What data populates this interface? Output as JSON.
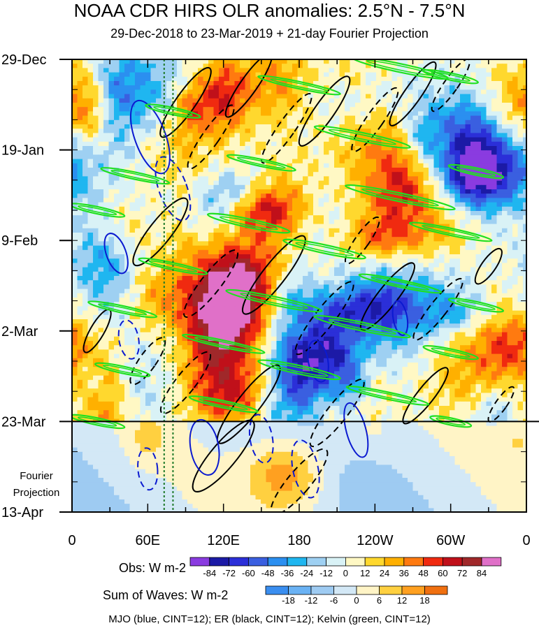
{
  "title": "NOAA CDR HIRS OLR anomalies: 2.5°N - 7.5°N",
  "subtitle": "29-Dec-2018 to 23-Mar-2019 + 21-day Fourier Projection",
  "caption": "MJO (blue, CINT=12); ER (black, CINT=12); Kelvin (green, CINT=12)",
  "chart_data": {
    "type": "heatmap",
    "title": "NOAA CDR HIRS OLR anomalies: 2.5°N - 7.5°N",
    "subtitle": "29-Dec-2018 to 23-Mar-2019 + 21-day Fourier Projection",
    "x_ticks": [
      {
        "lon": 0,
        "label": "0"
      },
      {
        "lon": 60,
        "label": "60E"
      },
      {
        "lon": 120,
        "label": "120E"
      },
      {
        "lon": 180,
        "label": "180"
      },
      {
        "lon": 240,
        "label": "120W"
      },
      {
        "lon": 300,
        "label": "60W"
      },
      {
        "lon": 360,
        "label": "0"
      }
    ],
    "xlim": [
      0,
      360
    ],
    "y_ticks": [
      {
        "day": 0,
        "label": "29-Dec"
      },
      {
        "day": 21,
        "label": "19-Jan"
      },
      {
        "day": 42,
        "label": "9-Feb"
      },
      {
        "day": 63,
        "label": "2-Mar"
      },
      {
        "day": 84,
        "label": "23-Mar"
      },
      {
        "day": 105,
        "label": "13-Apr"
      }
    ],
    "ylim_days": [
      0,
      105
    ],
    "observation_end_day": 84,
    "projection_label_line1": "Fourier",
    "projection_label_line2": "Projection",
    "vertical_reference_lons": [
      73,
      80
    ],
    "obs_colorbar": {
      "label": "Obs: W m-2",
      "levels": [
        -84,
        -72,
        -60,
        -48,
        -36,
        -24,
        -12,
        0,
        12,
        24,
        36,
        48,
        60,
        72,
        84
      ],
      "level_labels": [
        "-84",
        "-72",
        "-60",
        "-48",
        "-36",
        "-24",
        "-12",
        "0",
        "12",
        "24",
        "36",
        "48",
        "60",
        "72",
        "84"
      ],
      "colors": [
        "#8a3be0",
        "#1c1aa6",
        "#2b2fd8",
        "#3a5fe0",
        "#2b8ff0",
        "#1fb6f0",
        "#9ed0f2",
        "#d9f2f6",
        "#fff8c4",
        "#ffd82e",
        "#ffb000",
        "#ff7a10",
        "#f02a10",
        "#c0101a",
        "#a0282a",
        "#e070c8"
      ]
    },
    "waves_colorbar": {
      "label": "Sum of Waves: W m-2",
      "levels": [
        -18,
        -12,
        -6,
        0,
        6,
        12,
        18
      ],
      "level_labels": [
        "-18",
        "-12",
        "-6",
        "0",
        "6",
        "12",
        "18"
      ],
      "colors": [
        "#3a8ef0",
        "#6ab2f4",
        "#9ecbf2",
        "#d3e8f6",
        "#fff4c6",
        "#ffd040",
        "#ffa020",
        "#f07010"
      ]
    },
    "contours": [
      {
        "name": "MJO",
        "color": "#0b1ad0",
        "cint": 12
      },
      {
        "name": "ER",
        "color": "#000000",
        "cint": 12
      },
      {
        "name": "Kelvin",
        "color": "#20e020",
        "cint": 12
      }
    ]
  }
}
